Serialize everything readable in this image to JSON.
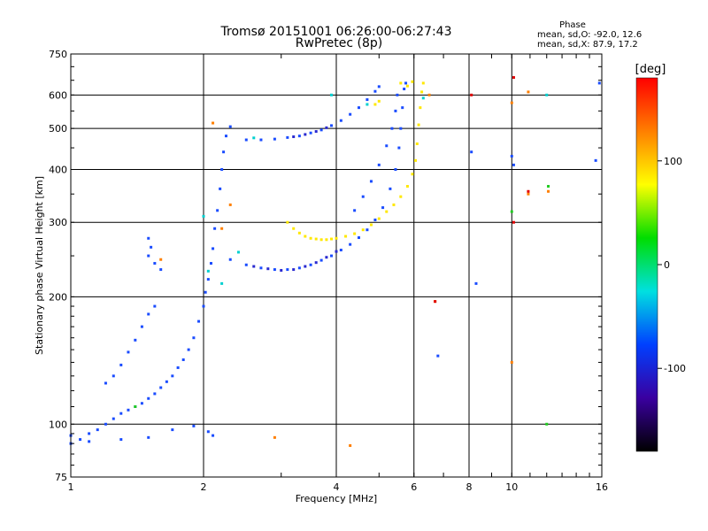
{
  "chart_data": {
    "type": "scatter",
    "title": "Tromsø 20151001 06:26:00-06:27:43",
    "subtitle": "RwPretec (8p)",
    "xlabel": "Frequency [MHz]",
    "ylabel": "Stationary phase Virtual Height [km]",
    "x_scale": "log",
    "y_scale": "log",
    "xlim": [
      1,
      16
    ],
    "ylim": [
      75,
      750
    ],
    "x_ticks": [
      1,
      2,
      4,
      6,
      8,
      10,
      16
    ],
    "y_ticks": [
      75,
      100,
      200,
      300,
      400,
      500,
      600,
      750
    ],
    "grid": true,
    "phase_info": {
      "heading": "Phase",
      "line1": "mean, sd,O: -92.0, 12.6",
      "line2": "mean, sd,X: 87.9, 17.2"
    },
    "colorbar": {
      "label": "[deg]",
      "range": [
        -180,
        180
      ],
      "ticks": [
        100,
        0,
        -100
      ],
      "colors": [
        "#ff0000",
        "#ff7f00",
        "#ffff00",
        "#00dd00",
        "#00e0e0",
        "#0040ff",
        "#3a00a0",
        "#000000"
      ]
    },
    "series": [
      {
        "phase": -100,
        "color": "#1a4cff",
        "points": [
          [
            1.0,
            90
          ],
          [
            1.05,
            92
          ],
          [
            1.1,
            95
          ],
          [
            1.15,
            97
          ],
          [
            1.2,
            100
          ],
          [
            1.25,
            103
          ],
          [
            1.3,
            106
          ],
          [
            1.35,
            108
          ],
          [
            1.4,
            110
          ],
          [
            1.45,
            112
          ],
          [
            1.5,
            115
          ],
          [
            1.55,
            118
          ],
          [
            1.6,
            122
          ],
          [
            1.65,
            126
          ],
          [
            1.7,
            130
          ],
          [
            1.75,
            136
          ],
          [
            1.8,
            142
          ],
          [
            1.85,
            150
          ],
          [
            1.9,
            160
          ],
          [
            1.95,
            175
          ],
          [
            2.0,
            190
          ],
          [
            2.02,
            205
          ],
          [
            2.05,
            220
          ],
          [
            2.08,
            240
          ],
          [
            2.1,
            260
          ],
          [
            2.12,
            290
          ],
          [
            2.15,
            320
          ],
          [
            2.18,
            360
          ],
          [
            2.2,
            400
          ],
          [
            2.22,
            440
          ],
          [
            2.25,
            480
          ],
          [
            2.3,
            505
          ],
          [
            1.2,
            125
          ],
          [
            1.25,
            130
          ],
          [
            1.3,
            138
          ],
          [
            1.35,
            148
          ],
          [
            1.4,
            158
          ],
          [
            1.45,
            170
          ],
          [
            1.5,
            182
          ],
          [
            1.55,
            190
          ],
          [
            1.5,
            250
          ],
          [
            1.55,
            240
          ],
          [
            1.6,
            232
          ],
          [
            1.5,
            275
          ],
          [
            1.52,
            262
          ],
          [
            2.3,
            245
          ],
          [
            2.5,
            238
          ],
          [
            2.7,
            234
          ],
          [
            2.9,
            232
          ],
          [
            3.1,
            232
          ],
          [
            3.3,
            234
          ],
          [
            3.5,
            238
          ],
          [
            3.7,
            244
          ],
          [
            3.9,
            250
          ],
          [
            4.1,
            258
          ],
          [
            4.3,
            266
          ],
          [
            4.5,
            276
          ],
          [
            4.7,
            288
          ],
          [
            4.9,
            304
          ],
          [
            5.1,
            325
          ],
          [
            5.3,
            360
          ],
          [
            5.45,
            400
          ],
          [
            5.55,
            450
          ],
          [
            5.6,
            500
          ],
          [
            5.65,
            560
          ],
          [
            5.7,
            620
          ],
          [
            5.75,
            640
          ],
          [
            2.5,
            470
          ],
          [
            2.7,
            470
          ],
          [
            2.9,
            472
          ],
          [
            3.1,
            476
          ],
          [
            3.3,
            480
          ],
          [
            3.5,
            488
          ],
          [
            3.7,
            496
          ],
          [
            3.9,
            508
          ],
          [
            4.1,
            522
          ],
          [
            4.3,
            540
          ],
          [
            4.5,
            560
          ],
          [
            4.7,
            585
          ],
          [
            4.9,
            612
          ],
          [
            5.0,
            628
          ],
          [
            4.4,
            320
          ],
          [
            4.6,
            345
          ],
          [
            4.8,
            375
          ],
          [
            5.0,
            410
          ],
          [
            5.2,
            455
          ],
          [
            5.35,
            500
          ],
          [
            5.45,
            550
          ],
          [
            5.5,
            600
          ],
          [
            1.0,
            94
          ],
          [
            1.1,
            91
          ],
          [
            1.3,
            92
          ],
          [
            1.5,
            93
          ],
          [
            1.7,
            97
          ],
          [
            1.9,
            99
          ],
          [
            2.05,
            96
          ],
          [
            2.1,
            94
          ],
          [
            8.1,
            440
          ],
          [
            10.0,
            430
          ],
          [
            10.1,
            410
          ],
          [
            15.5,
            420
          ],
          [
            15.8,
            640
          ],
          [
            6.8,
            145
          ],
          [
            8.3,
            215
          ]
        ]
      },
      {
        "phase": -110,
        "color": "#2a2ad0",
        "points": [
          [
            2.6,
            236
          ],
          [
            2.8,
            233
          ],
          [
            3.0,
            231
          ],
          [
            3.2,
            232
          ],
          [
            3.4,
            236
          ],
          [
            3.6,
            241
          ],
          [
            3.8,
            248
          ],
          [
            4.0,
            256
          ],
          [
            3.2,
            478
          ],
          [
            3.4,
            484
          ],
          [
            3.6,
            492
          ],
          [
            3.8,
            502
          ]
        ]
      },
      {
        "phase": 100,
        "color": "#ffe800",
        "points": [
          [
            3.1,
            300
          ],
          [
            3.2,
            290
          ],
          [
            3.3,
            283
          ],
          [
            3.4,
            278
          ],
          [
            3.5,
            275
          ],
          [
            3.6,
            274
          ],
          [
            3.7,
            273
          ],
          [
            3.8,
            273
          ],
          [
            3.9,
            274
          ],
          [
            4.0,
            275
          ],
          [
            4.2,
            278
          ],
          [
            4.4,
            282
          ],
          [
            4.6,
            288
          ],
          [
            4.8,
            296
          ],
          [
            5.0,
            306
          ],
          [
            5.2,
            318
          ],
          [
            5.4,
            330
          ],
          [
            5.6,
            345
          ],
          [
            5.8,
            365
          ],
          [
            5.95,
            390
          ],
          [
            6.05,
            420
          ],
          [
            6.1,
            460
          ],
          [
            6.15,
            510
          ],
          [
            6.2,
            560
          ],
          [
            6.25,
            610
          ],
          [
            6.3,
            640
          ],
          [
            5.95,
            645
          ],
          [
            5.8,
            630
          ],
          [
            5.6,
            640
          ],
          [
            4.9,
            570
          ],
          [
            5.0,
            580
          ]
        ]
      },
      {
        "phase": 0,
        "color": "#00d0d0",
        "points": [
          [
            2.05,
            230
          ],
          [
            2.2,
            215
          ],
          [
            2.4,
            255
          ],
          [
            2.6,
            475
          ],
          [
            3.9,
            600
          ],
          [
            4.7,
            570
          ],
          [
            6.3,
            590
          ],
          [
            12.0,
            600
          ],
          [
            2.0,
            310
          ]
        ]
      },
      {
        "phase": 140,
        "color": "#ff7f00",
        "points": [
          [
            2.1,
            515
          ],
          [
            2.2,
            290
          ],
          [
            2.3,
            330
          ],
          [
            1.6,
            245
          ],
          [
            6.7,
            195
          ],
          [
            10.9,
            610
          ],
          [
            10.0,
            140
          ],
          [
            10.9,
            350
          ],
          [
            6.5,
            600
          ],
          [
            2.9,
            93
          ],
          [
            4.3,
            89
          ],
          [
            12.1,
            355
          ],
          [
            10.0,
            575
          ]
        ]
      },
      {
        "phase": 60,
        "color": "#22cc22",
        "points": [
          [
            12.1,
            365
          ],
          [
            1.4,
            110
          ],
          [
            10.0,
            318
          ],
          [
            12.0,
            100
          ]
        ]
      },
      {
        "phase": 170,
        "color": "#e00000",
        "points": [
          [
            6.7,
            195
          ],
          [
            8.1,
            600
          ],
          [
            10.1,
            660
          ],
          [
            10.9,
            355
          ],
          [
            10.1,
            300
          ]
        ]
      }
    ]
  }
}
